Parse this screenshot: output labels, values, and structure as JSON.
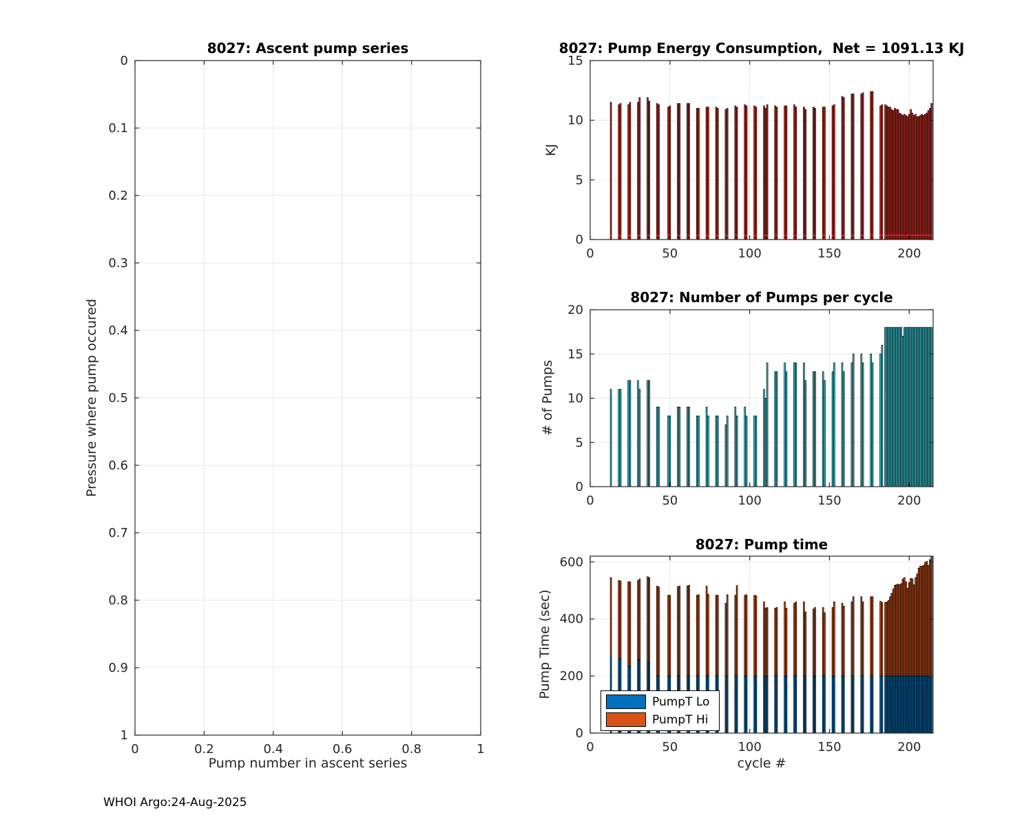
{
  "figure": {
    "footer": "WHOI Argo:24-Aug-2025"
  },
  "style": {
    "background": "#ffffff",
    "axis_color": "#262626",
    "grid_color": "#e6e6e6",
    "energy_bar_color": "#e03127",
    "energy_marker_color": "#ff1f1f",
    "pumps_bar_color": "#3fe0ea",
    "pumptime_lo_color": "#0072BD",
    "pumptime_hi_color": "#D95319",
    "bar_edge_color": "#000000"
  },
  "chart_data": [
    {
      "id": "ascent",
      "type": "scatter",
      "title": "8027: Ascent pump series",
      "xlabel": "Pump number in ascent series",
      "ylabel": "Pressure where pump occured",
      "xlim": [
        0,
        1
      ],
      "ylim": [
        0,
        1
      ],
      "y_reversed": true,
      "grid": true,
      "xticks": [
        0,
        0.2,
        0.4,
        0.6,
        0.8,
        1
      ],
      "yticks": [
        0,
        0.1,
        0.2,
        0.3,
        0.4,
        0.5,
        0.6,
        0.7,
        0.8,
        0.9,
        1
      ],
      "points": []
    },
    {
      "id": "energy",
      "type": "bar",
      "title": "8027: Pump Energy Consumption,  Net = 1091.13 KJ",
      "net_kj": 1091.13,
      "xlabel": "",
      "ylabel": "KJ",
      "xlim": [
        0,
        215
      ],
      "ylim": [
        0,
        15
      ],
      "grid": true,
      "xticks": [
        0,
        50,
        100,
        150,
        200
      ],
      "yticks": [
        0,
        5,
        10,
        15
      ],
      "bar_color": "#e03127",
      "bar_edge": "#000000",
      "marker_y": 0.35,
      "marker_color": "#ff1f1f",
      "bar_width": 0.8,
      "bars": [
        [
          13,
          11.5
        ],
        [
          18,
          11.3
        ],
        [
          19,
          11.4
        ],
        [
          24,
          11.3
        ],
        [
          25,
          11.5
        ],
        [
          30,
          11.5
        ],
        [
          31,
          11.9
        ],
        [
          36,
          11.9
        ],
        [
          37,
          11.6
        ],
        [
          42,
          11.4
        ],
        [
          43,
          11.3
        ],
        [
          49,
          11.1
        ],
        [
          50,
          11.2
        ],
        [
          55,
          11.4
        ],
        [
          56,
          11.4
        ],
        [
          61,
          11.4
        ],
        [
          62,
          11.4
        ],
        [
          67,
          11.0
        ],
        [
          68,
          11.0
        ],
        [
          73,
          11.1
        ],
        [
          74,
          11.1
        ],
        [
          79,
          11.1
        ],
        [
          80,
          11.0
        ],
        [
          85,
          10.9
        ],
        [
          86,
          11.0
        ],
        [
          91,
          11.2
        ],
        [
          92,
          11.1
        ],
        [
          97,
          11.3
        ],
        [
          98,
          11.2
        ],
        [
          103,
          11.2
        ],
        [
          104,
          11.1
        ],
        [
          109,
          11.2
        ],
        [
          110,
          11.0
        ],
        [
          111,
          11.3
        ],
        [
          116,
          11.2
        ],
        [
          117,
          11.1
        ],
        [
          122,
          11.2
        ],
        [
          123,
          11.2
        ],
        [
          128,
          11.3
        ],
        [
          129,
          11.1
        ],
        [
          134,
          11.1
        ],
        [
          135,
          10.9
        ],
        [
          140,
          11.1
        ],
        [
          141,
          11.0
        ],
        [
          146,
          11.1
        ],
        [
          147,
          11.1
        ],
        [
          152,
          11.2
        ],
        [
          153,
          11.3
        ],
        [
          158,
          12.0
        ],
        [
          159,
          11.9
        ],
        [
          164,
          12.2
        ],
        [
          165,
          12.2
        ],
        [
          170,
          12.2
        ],
        [
          171,
          12.3
        ],
        [
          176,
          12.4
        ],
        [
          177,
          12.4
        ],
        [
          182,
          11.2
        ],
        [
          183,
          11.3
        ],
        [
          185,
          11.3
        ],
        [
          186,
          11.2
        ],
        [
          187,
          11.1
        ],
        [
          188,
          11.1
        ],
        [
          189,
          10.9
        ],
        [
          190,
          10.8
        ],
        [
          191,
          11.0
        ],
        [
          192,
          10.9
        ],
        [
          193,
          10.9
        ],
        [
          194,
          10.6
        ],
        [
          195,
          10.5
        ],
        [
          196,
          10.4
        ],
        [
          197,
          10.5
        ],
        [
          198,
          10.4
        ],
        [
          199,
          10.3
        ],
        [
          200,
          10.5
        ],
        [
          201,
          10.9
        ],
        [
          202,
          10.6
        ],
        [
          203,
          10.4
        ],
        [
          204,
          10.5
        ],
        [
          205,
          10.3
        ],
        [
          206,
          10.3
        ],
        [
          207,
          10.4
        ],
        [
          208,
          10.5
        ],
        [
          209,
          10.4
        ],
        [
          210,
          10.5
        ],
        [
          211,
          10.6
        ],
        [
          212,
          10.8
        ],
        [
          213,
          11.0
        ],
        [
          214,
          11.4
        ]
      ]
    },
    {
      "id": "pumps",
      "type": "bar",
      "title": "8027: Number of Pumps per cycle",
      "xlabel": "",
      "ylabel": "# of Pumps",
      "xlim": [
        0,
        215
      ],
      "ylim": [
        0,
        20
      ],
      "grid": true,
      "xticks": [
        0,
        50,
        100,
        150,
        200
      ],
      "yticks": [
        0,
        5,
        10,
        15,
        20
      ],
      "bar_color": "#3fe0ea",
      "bar_edge": "#000000",
      "bar_width": 0.8,
      "bars": [
        [
          13,
          11
        ],
        [
          18,
          11
        ],
        [
          19,
          11
        ],
        [
          24,
          12
        ],
        [
          25,
          12
        ],
        [
          30,
          12
        ],
        [
          31,
          11
        ],
        [
          36,
          12
        ],
        [
          37,
          12
        ],
        [
          42,
          9
        ],
        [
          43,
          9
        ],
        [
          49,
          8
        ],
        [
          50,
          8
        ],
        [
          55,
          9
        ],
        [
          56,
          9
        ],
        [
          61,
          9
        ],
        [
          62,
          9
        ],
        [
          67,
          8
        ],
        [
          68,
          8
        ],
        [
          73,
          9
        ],
        [
          74,
          8
        ],
        [
          79,
          8
        ],
        [
          80,
          8
        ],
        [
          85,
          7
        ],
        [
          86,
          8
        ],
        [
          91,
          9
        ],
        [
          92,
          8
        ],
        [
          97,
          9
        ],
        [
          98,
          8
        ],
        [
          103,
          8
        ],
        [
          104,
          8
        ],
        [
          109,
          11
        ],
        [
          110,
          10
        ],
        [
          111,
          14
        ],
        [
          116,
          13
        ],
        [
          117,
          13
        ],
        [
          122,
          14
        ],
        [
          123,
          13
        ],
        [
          128,
          14
        ],
        [
          129,
          14
        ],
        [
          134,
          14
        ],
        [
          135,
          12
        ],
        [
          140,
          13
        ],
        [
          141,
          13
        ],
        [
          146,
          13
        ],
        [
          147,
          12
        ],
        [
          152,
          13
        ],
        [
          153,
          14
        ],
        [
          158,
          14
        ],
        [
          159,
          13
        ],
        [
          164,
          14
        ],
        [
          165,
          15
        ],
        [
          170,
          15
        ],
        [
          171,
          14
        ],
        [
          176,
          15
        ],
        [
          177,
          14
        ],
        [
          182,
          15
        ],
        [
          183,
          16
        ],
        [
          185,
          18
        ],
        [
          186,
          18
        ],
        [
          187,
          18
        ],
        [
          188,
          18
        ],
        [
          189,
          18
        ],
        [
          190,
          18
        ],
        [
          191,
          18
        ],
        [
          192,
          18
        ],
        [
          193,
          18
        ],
        [
          194,
          18
        ],
        [
          195,
          18
        ],
        [
          196,
          17
        ],
        [
          197,
          18
        ],
        [
          198,
          18
        ],
        [
          199,
          18
        ],
        [
          200,
          18
        ],
        [
          201,
          18
        ],
        [
          202,
          18
        ],
        [
          203,
          18
        ],
        [
          204,
          18
        ],
        [
          205,
          18
        ],
        [
          206,
          18
        ],
        [
          207,
          18
        ],
        [
          208,
          18
        ],
        [
          209,
          18
        ],
        [
          210,
          18
        ],
        [
          211,
          18
        ],
        [
          212,
          18
        ],
        [
          213,
          18
        ],
        [
          214,
          18
        ]
      ]
    },
    {
      "id": "pumptime",
      "type": "stacked-bar",
      "title": "8027: Pump time",
      "xlabel": "cycle #",
      "ylabel": "Pump Time (sec)",
      "xlim": [
        0,
        215
      ],
      "ylim": [
        0,
        620
      ],
      "grid": true,
      "xticks": [
        0,
        50,
        100,
        150,
        200
      ],
      "yticks": [
        0,
        200,
        400,
        600
      ],
      "bar_edge": "#000000",
      "bar_width": 0.8,
      "legend_position": "lower-left",
      "series": [
        {
          "name": "PumpT Lo",
          "color": "#0072BD"
        },
        {
          "name": "PumpT Hi",
          "color": "#D95319"
        }
      ],
      "bars": [
        [
          13,
          270,
          275
        ],
        [
          18,
          260,
          275
        ],
        [
          19,
          260,
          273
        ],
        [
          24,
          235,
          295
        ],
        [
          25,
          235,
          295
        ],
        [
          30,
          255,
          280
        ],
        [
          31,
          258,
          282
        ],
        [
          36,
          250,
          298
        ],
        [
          37,
          248,
          297
        ],
        [
          42,
          200,
          315
        ],
        [
          43,
          200,
          312
        ],
        [
          49,
          200,
          283
        ],
        [
          50,
          200,
          283
        ],
        [
          55,
          200,
          313
        ],
        [
          56,
          200,
          315
        ],
        [
          61,
          200,
          316
        ],
        [
          62,
          200,
          318
        ],
        [
          67,
          200,
          283
        ],
        [
          68,
          200,
          285
        ],
        [
          73,
          200,
          315
        ],
        [
          74,
          200,
          287
        ],
        [
          79,
          200,
          283
        ],
        [
          80,
          200,
          283
        ],
        [
          85,
          200,
          255
        ],
        [
          86,
          200,
          285
        ],
        [
          91,
          200,
          283
        ],
        [
          92,
          200,
          317
        ],
        [
          97,
          200,
          283
        ],
        [
          98,
          200,
          285
        ],
        [
          103,
          200,
          283
        ],
        [
          104,
          200,
          281
        ],
        [
          109,
          200,
          260
        ],
        [
          110,
          200,
          238
        ],
        [
          111,
          200,
          240
        ],
        [
          116,
          200,
          238
        ],
        [
          117,
          200,
          240
        ],
        [
          122,
          200,
          260
        ],
        [
          123,
          200,
          238
        ],
        [
          128,
          200,
          255
        ],
        [
          129,
          200,
          260
        ],
        [
          134,
          200,
          260
        ],
        [
          135,
          200,
          225
        ],
        [
          140,
          200,
          235
        ],
        [
          141,
          200,
          240
        ],
        [
          146,
          200,
          240
        ],
        [
          147,
          200,
          222
        ],
        [
          152,
          200,
          240
        ],
        [
          153,
          200,
          260
        ],
        [
          158,
          200,
          255
        ],
        [
          159,
          200,
          245
        ],
        [
          164,
          200,
          260
        ],
        [
          165,
          200,
          278
        ],
        [
          170,
          200,
          278
        ],
        [
          171,
          200,
          260
        ],
        [
          176,
          200,
          278
        ],
        [
          177,
          200,
          278
        ],
        [
          182,
          200,
          262
        ],
        [
          183,
          200,
          258
        ],
        [
          185,
          200,
          258
        ],
        [
          186,
          200,
          260
        ],
        [
          187,
          200,
          265
        ],
        [
          188,
          200,
          278
        ],
        [
          189,
          200,
          290
        ],
        [
          190,
          200,
          305
        ],
        [
          191,
          200,
          318
        ],
        [
          192,
          200,
          320
        ],
        [
          193,
          200,
          322
        ],
        [
          194,
          200,
          320
        ],
        [
          195,
          200,
          324
        ],
        [
          196,
          200,
          340
        ],
        [
          197,
          200,
          345
        ],
        [
          198,
          200,
          330
        ],
        [
          199,
          200,
          308
        ],
        [
          200,
          200,
          328
        ],
        [
          201,
          200,
          342
        ],
        [
          202,
          200,
          340
        ],
        [
          203,
          200,
          320
        ],
        [
          204,
          200,
          345
        ],
        [
          205,
          200,
          358
        ],
        [
          206,
          200,
          378
        ],
        [
          207,
          200,
          385
        ],
        [
          208,
          200,
          385
        ],
        [
          209,
          200,
          388
        ],
        [
          210,
          200,
          398
        ],
        [
          211,
          200,
          402
        ],
        [
          212,
          200,
          388
        ],
        [
          213,
          200,
          408
        ],
        [
          214,
          200,
          420
        ]
      ]
    }
  ]
}
